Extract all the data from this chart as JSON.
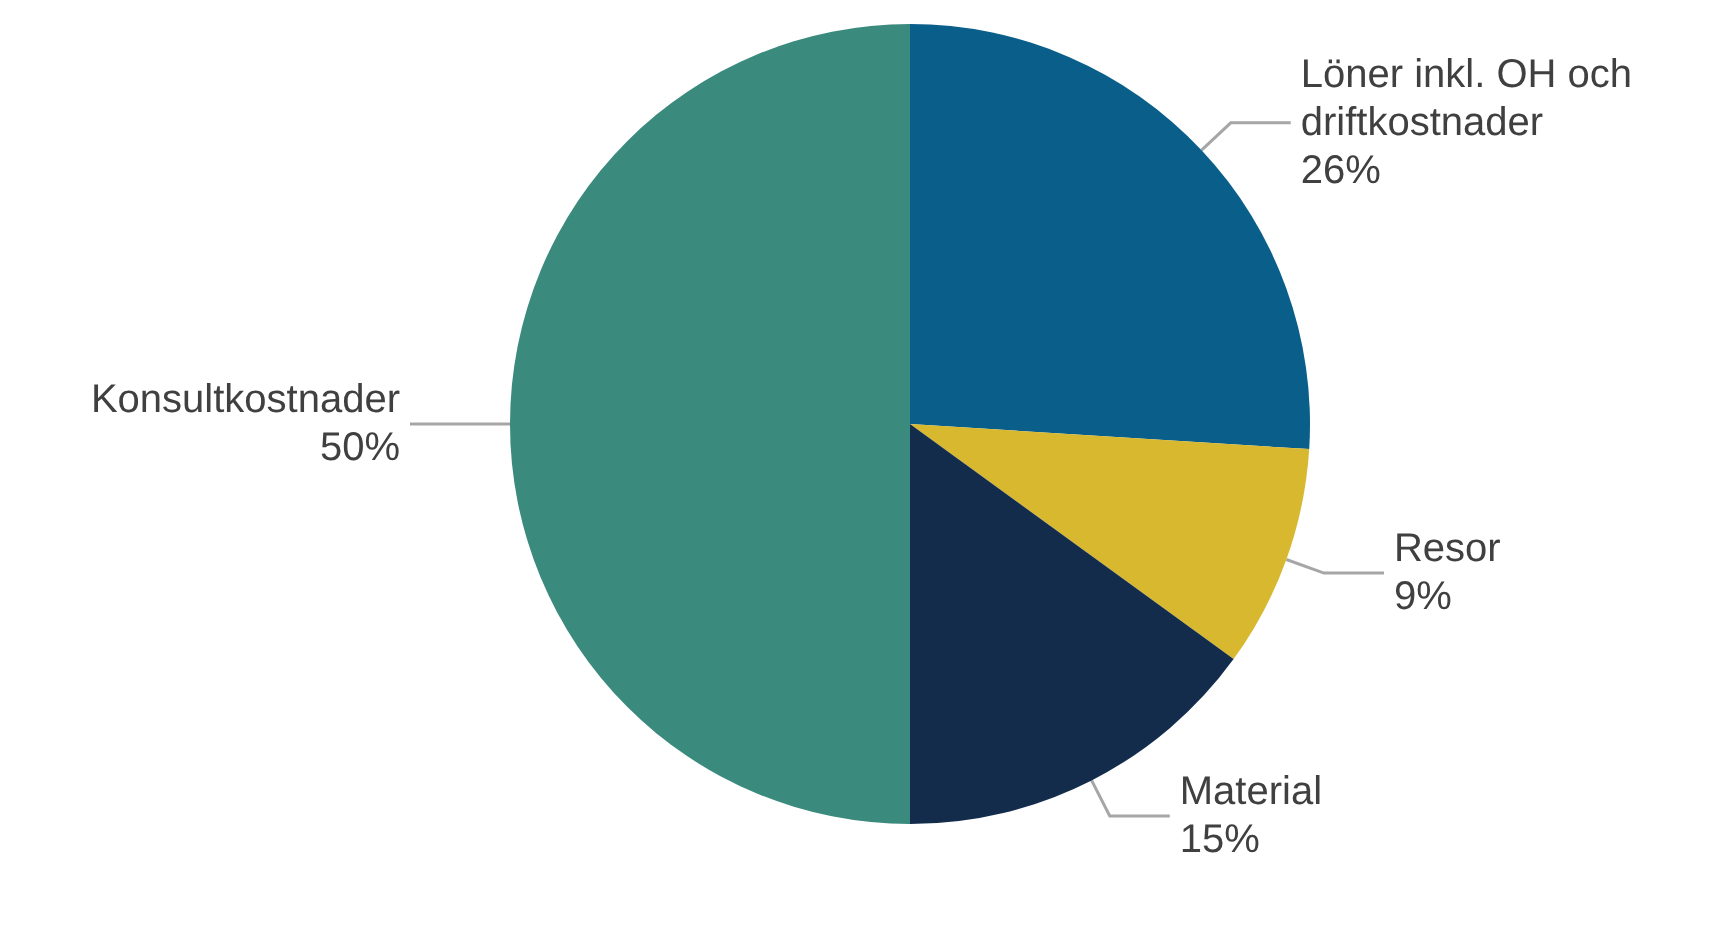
{
  "chart_data": {
    "type": "pie",
    "categories": [
      "Löner inkl. OH och driftkostnader",
      "Resor",
      "Material",
      "Konsultkostnader"
    ],
    "values": [
      26,
      9,
      15,
      50
    ],
    "colors": [
      "#0a5f8a",
      "#d8b82f",
      "#132c4c",
      "#3a8a7e"
    ],
    "value_labels": [
      "26%",
      "9%",
      "15%",
      "50%"
    ],
    "legend": false
  }
}
